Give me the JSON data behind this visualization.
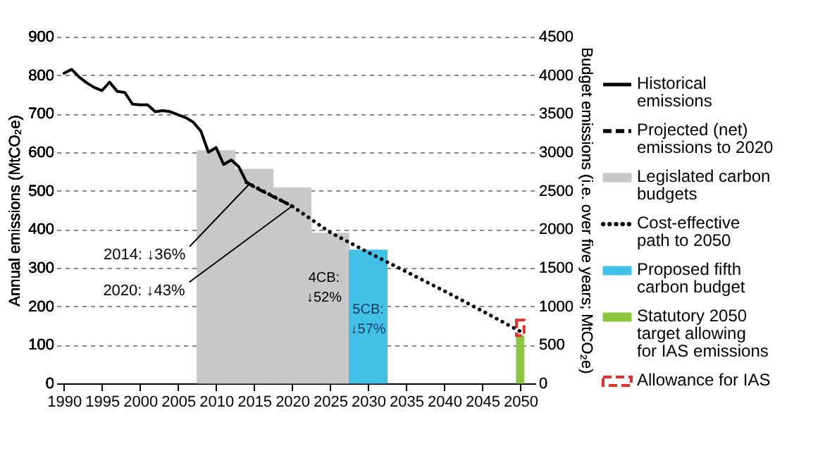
{
  "chart_data": {
    "type": "line",
    "xlim": [
      1989,
      2052
    ],
    "xticks": [
      1990,
      1995,
      2000,
      2005,
      2010,
      2015,
      2020,
      2025,
      2030,
      2035,
      2040,
      2045,
      2050
    ],
    "ylim": [
      0,
      900
    ],
    "yticks": [
      0,
      100,
      200,
      300,
      400,
      500,
      600,
      700,
      800,
      900
    ],
    "y2lim": [
      0,
      4500
    ],
    "y2ticks": [
      0,
      500,
      1000,
      1500,
      2000,
      2500,
      3000,
      3500,
      4000,
      4500
    ],
    "ylabel": "Annual emissions (MtCO₂e)",
    "y2label": "Budget emissions (i.e. over five years; MtCO₂e)",
    "grid": "y",
    "legend": "right",
    "series": [
      {
        "name": "Historical emissions",
        "color": "#000000",
        "line_style": "solid",
        "x": [
          1990,
          1991,
          1992,
          1993,
          1994,
          1995,
          1996,
          1997,
          1998,
          1999,
          2000,
          2001,
          2002,
          2003,
          2004,
          2005,
          2006,
          2007,
          2008,
          2009,
          2010,
          2011,
          2012,
          2013,
          2014
        ],
        "values": [
          805,
          815,
          795,
          780,
          768,
          760,
          782,
          758,
          755,
          725,
          723,
          723,
          705,
          708,
          705,
          697,
          690,
          678,
          655,
          600,
          612,
          568,
          580,
          562,
          522
        ]
      },
      {
        "name": "Projected (net) emissions to 2020",
        "color": "#000000",
        "line_style": "dashed",
        "x": [
          2014,
          2015,
          2016,
          2017,
          2018,
          2019,
          2020
        ],
        "values": [
          522,
          510,
          500,
          490,
          480,
          470,
          460
        ]
      },
      {
        "name": "Legislated carbon budgets",
        "type": "bar",
        "axis": "y2",
        "color": "#c8c8c8",
        "x": [
          2010,
          2015,
          2020,
          2025
        ],
        "values": [
          3020,
          2780,
          2540,
          1950
        ]
      },
      {
        "name": "Cost-effective path to 2050",
        "color": "#000000",
        "line_style": "dotted",
        "x": [
          2014,
          2020,
          2025,
          2030,
          2035,
          2040,
          2045,
          2050
        ],
        "values": [
          522,
          460,
          392,
          340,
          290,
          240,
          188,
          135
        ]
      },
      {
        "name": "Proposed fifth carbon budget",
        "type": "bar",
        "axis": "y2",
        "color": "#41c0e8",
        "x": [
          2030
        ],
        "values": [
          1730
        ]
      },
      {
        "name": "Statutory 2050 target allowing for IAS emissions",
        "type": "bar",
        "axis": "y2",
        "color": "#8cc63f",
        "x": [
          2050
        ],
        "values": [
          620
        ]
      },
      {
        "name": "Allowance for IAS",
        "type": "bar",
        "axis": "y2",
        "color": "#e0302a",
        "line_style": "dashed",
        "x": [
          2050
        ],
        "base": [
          620
        ],
        "values": [
          200
        ]
      }
    ],
    "annotations": [
      {
        "text": "2014: ↓36%",
        "x": 2014.5,
        "y": 520
      },
      {
        "text": "2020: ↓43%",
        "x": 2020,
        "y": 460
      },
      "4CB: ↓52%",
      "5CB: ↓57%"
    ]
  }
}
